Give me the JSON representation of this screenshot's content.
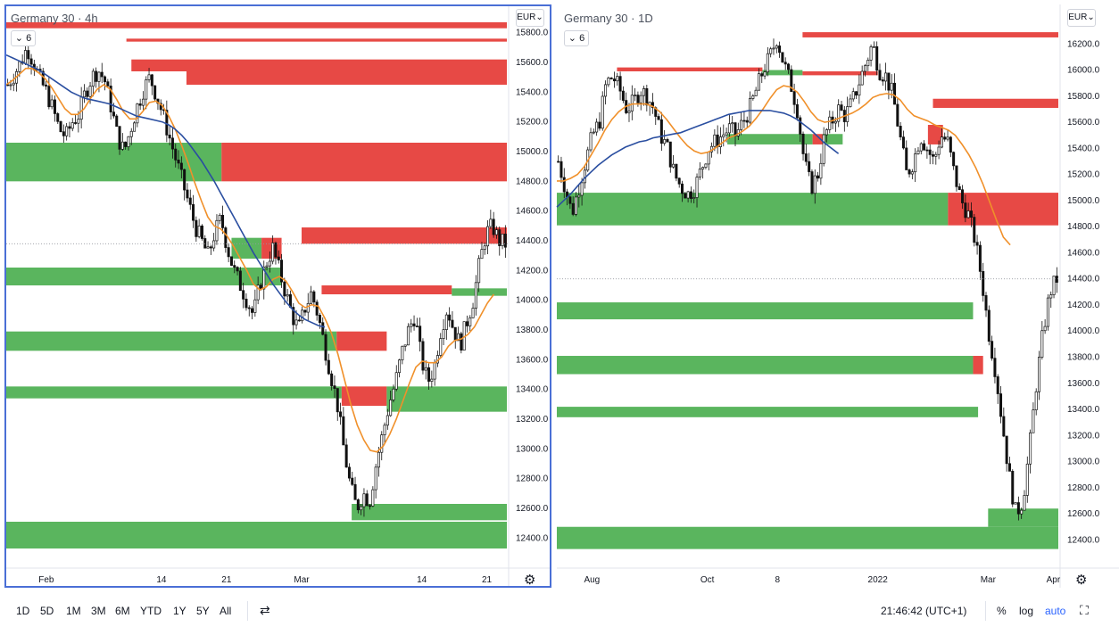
{
  "toolbar": {
    "timeframes": [
      "1D",
      "5D",
      "1M",
      "3M",
      "6M",
      "YTD",
      "1Y",
      "5Y",
      "All"
    ],
    "compare_icon": "calendar-range-icon",
    "clock": "21:46:42 (UTC+1)",
    "percent": "%",
    "log": "log",
    "auto": "auto",
    "fullscreen_icon": "fullscreen-icon",
    "accent_color": "#2962ff"
  },
  "colors": {
    "green_zone": "#4caf50",
    "red_zone": "#e53935",
    "ma_fast": "#f0902a",
    "ma_slow": "#2a4ea0",
    "frame": "#4a6fd6"
  },
  "chart_data": [
    {
      "type": "candlestick",
      "title": "Germany 30 · 4h",
      "interval_badge": "6",
      "currency": "EUR",
      "ylim": [
        12300,
        15900
      ],
      "y_ticks": [
        15800,
        15600,
        15400,
        15200,
        15000,
        14800,
        14600,
        14400,
        14200,
        14000,
        13800,
        13600,
        13400,
        13200,
        13000,
        12800,
        12600,
        12400
      ],
      "x_ticks": [
        {
          "label": "Feb",
          "t": 0.08
        },
        {
          "label": "14",
          "t": 0.31
        },
        {
          "label": "21",
          "t": 0.44
        },
        {
          "label": "Mar",
          "t": 0.59
        },
        {
          "label": "14",
          "t": 0.83
        },
        {
          "label": "21",
          "t": 0.96
        }
      ],
      "zones": [
        {
          "kind": "red",
          "from": 15870,
          "to": 15830,
          "x0": 0.0,
          "x1": 1.0
        },
        {
          "kind": "red",
          "from": 15760,
          "to": 15740,
          "x0": 0.24,
          "x1": 1.0
        },
        {
          "kind": "red",
          "from": 15620,
          "to": 15540,
          "x0": 0.25,
          "x1": 1.0
        },
        {
          "kind": "red",
          "from": 15540,
          "to": 15450,
          "x0": 0.36,
          "x1": 1.0
        },
        {
          "kind": "green",
          "from": 15060,
          "to": 14800,
          "x0": 0.0,
          "x1": 0.43
        },
        {
          "kind": "red",
          "from": 15060,
          "to": 14800,
          "x0": 0.43,
          "x1": 1.0
        },
        {
          "kind": "red",
          "from": 14490,
          "to": 14380,
          "x0": 0.59,
          "x1": 1.0
        },
        {
          "kind": "green",
          "from": 14420,
          "to": 14280,
          "x0": 0.45,
          "x1": 0.51
        },
        {
          "kind": "red",
          "from": 14420,
          "to": 14280,
          "x0": 0.51,
          "x1": 0.55
        },
        {
          "kind": "green",
          "from": 14220,
          "to": 14100,
          "x0": 0.0,
          "x1": 0.55
        },
        {
          "kind": "red",
          "from": 14100,
          "to": 14040,
          "x0": 0.63,
          "x1": 0.89
        },
        {
          "kind": "green",
          "from": 14080,
          "to": 14030,
          "x0": 0.89,
          "x1": 1.0
        },
        {
          "kind": "green",
          "from": 13790,
          "to": 13660,
          "x0": 0.0,
          "x1": 0.66
        },
        {
          "kind": "red",
          "from": 13790,
          "to": 13660,
          "x0": 0.66,
          "x1": 0.76
        },
        {
          "kind": "green",
          "from": 13420,
          "to": 13340,
          "x0": 0.0,
          "x1": 0.67
        },
        {
          "kind": "red",
          "from": 13420,
          "to": 13290,
          "x0": 0.67,
          "x1": 0.76
        },
        {
          "kind": "green",
          "from": 13420,
          "to": 13250,
          "x0": 0.76,
          "x1": 1.0
        },
        {
          "kind": "green",
          "from": 12630,
          "to": 12520,
          "x0": 0.69,
          "x1": 1.0
        },
        {
          "kind": "green",
          "from": 12510,
          "to": 12330,
          "x0": 0.0,
          "x1": 1.0
        }
      ],
      "price_path": [
        15450,
        15520,
        15600,
        15700,
        15600,
        15480,
        15400,
        15280,
        15150,
        15100,
        15200,
        15250,
        15400,
        15500,
        15550,
        15480,
        15300,
        15100,
        15000,
        15150,
        15300,
        15420,
        15500,
        15380,
        15250,
        15100,
        14950,
        14800,
        14650,
        14500,
        14400,
        14300,
        14450,
        14550,
        14350,
        14200,
        14100,
        14000,
        13900,
        14100,
        14250,
        14350,
        14200,
        14050,
        13900,
        13800,
        13950,
        14050,
        13900,
        13700,
        13500,
        13300,
        13000,
        12750,
        12600,
        12700,
        12650,
        12900,
        13100,
        13300,
        13450,
        13650,
        13800,
        13900,
        13600,
        13450,
        13550,
        13800,
        13950,
        13800,
        13700,
        13850,
        14000,
        14250,
        14450,
        14500,
        14400,
        14380
      ],
      "ma_fast": [
        15450,
        15480,
        15520,
        15560,
        15560,
        15530,
        15490,
        15430,
        15360,
        15290,
        15250,
        15250,
        15290,
        15360,
        15420,
        15450,
        15420,
        15350,
        15270,
        15220,
        15220,
        15270,
        15330,
        15340,
        15310,
        15240,
        15150,
        15040,
        14920,
        14790,
        14670,
        14560,
        14500,
        14480,
        14430,
        14360,
        14280,
        14200,
        14110,
        14070,
        14090,
        14140,
        14160,
        14130,
        14060,
        13980,
        13950,
        13970,
        13960,
        13880,
        13780,
        13640,
        13470,
        13300,
        13160,
        13060,
        12990,
        12980,
        13020,
        13100,
        13200,
        13320,
        13440,
        13550,
        13590,
        13580,
        13580,
        13620,
        13690,
        13730,
        13740,
        13770,
        13820,
        13900,
        13980,
        14040
      ],
      "ma_slow": [
        15650,
        15630,
        15610,
        15590,
        15570,
        15550,
        15520,
        15490,
        15460,
        15430,
        15400,
        15380,
        15360,
        15350,
        15340,
        15330,
        15320,
        15300,
        15280,
        15260,
        15240,
        15230,
        15220,
        15210,
        15200,
        15180,
        15150,
        15110,
        15060,
        15000,
        14940,
        14870,
        14800,
        14720,
        14640,
        14560,
        14480,
        14400,
        14320,
        14250,
        14180,
        14110,
        14050,
        13990,
        13940,
        13900,
        13870,
        13850,
        13830,
        13820
      ]
    },
    {
      "type": "candlestick",
      "title": "Germany 30 · 1D",
      "interval_badge": "6",
      "currency": "EUR",
      "ylim": [
        12300,
        16400
      ],
      "y_ticks": [
        16200,
        16000,
        15800,
        15600,
        15400,
        15200,
        15000,
        14800,
        14600,
        14400,
        14200,
        14000,
        13800,
        13600,
        13400,
        13200,
        13000,
        12800,
        12600,
        12400
      ],
      "x_ticks": [
        {
          "label": "Aug",
          "t": 0.07
        },
        {
          "label": "Oct",
          "t": 0.3
        },
        {
          "label": "8",
          "t": 0.44
        },
        {
          "label": "2022",
          "t": 0.64
        },
        {
          "label": "Mar",
          "t": 0.86
        },
        {
          "label": "Apr",
          "t": 0.99
        }
      ],
      "zones": [
        {
          "kind": "red",
          "from": 16290,
          "to": 16250,
          "x0": 0.49,
          "x1": 1.0
        },
        {
          "kind": "red",
          "from": 16020,
          "to": 15990,
          "x0": 0.12,
          "x1": 0.41
        },
        {
          "kind": "green",
          "from": 16000,
          "to": 15960,
          "x0": 0.41,
          "x1": 0.49
        },
        {
          "kind": "red",
          "from": 15990,
          "to": 15960,
          "x0": 0.49,
          "x1": 0.64
        },
        {
          "kind": "red",
          "from": 15780,
          "to": 15710,
          "x0": 0.75,
          "x1": 1.0
        },
        {
          "kind": "red",
          "from": 15580,
          "to": 15430,
          "x0": 0.74,
          "x1": 0.77
        },
        {
          "kind": "green",
          "from": 15510,
          "to": 15430,
          "x0": 0.34,
          "x1": 0.51
        },
        {
          "kind": "red",
          "from": 15510,
          "to": 15430,
          "x0": 0.51,
          "x1": 0.53
        },
        {
          "kind": "green",
          "from": 15510,
          "to": 15430,
          "x0": 0.53,
          "x1": 0.57
        },
        {
          "kind": "green",
          "from": 15060,
          "to": 14810,
          "x0": 0.0,
          "x1": 0.78
        },
        {
          "kind": "red",
          "from": 15060,
          "to": 14810,
          "x0": 0.78,
          "x1": 1.0
        },
        {
          "kind": "green",
          "from": 14220,
          "to": 14090,
          "x0": 0.0,
          "x1": 0.83
        },
        {
          "kind": "green",
          "from": 13810,
          "to": 13670,
          "x0": 0.0,
          "x1": 0.83
        },
        {
          "kind": "red",
          "from": 13810,
          "to": 13670,
          "x0": 0.83,
          "x1": 0.85
        },
        {
          "kind": "green",
          "from": 13420,
          "to": 13340,
          "x0": 0.0,
          "x1": 0.84
        },
        {
          "kind": "green",
          "from": 12640,
          "to": 12500,
          "x0": 0.86,
          "x1": 1.0
        },
        {
          "kind": "green",
          "from": 12500,
          "to": 12330,
          "x0": 0.0,
          "x1": 1.0
        }
      ],
      "price_path": [
        15300,
        15100,
        14900,
        15100,
        15300,
        15500,
        15600,
        15900,
        15950,
        15850,
        15700,
        15750,
        15850,
        15800,
        15700,
        15500,
        15400,
        15200,
        15100,
        15050,
        15100,
        15250,
        15400,
        15450,
        15500,
        15550,
        15500,
        15600,
        15700,
        15850,
        16000,
        16100,
        16250,
        16050,
        15900,
        15700,
        15300,
        15100,
        15200,
        15500,
        15600,
        15700,
        15650,
        15750,
        15900,
        16050,
        16200,
        16000,
        15950,
        15800,
        15500,
        15200,
        15300,
        15500,
        15400,
        15300,
        15500,
        15450,
        15200,
        15000,
        14900,
        14700,
        14400,
        14000,
        13700,
        13300,
        12900,
        12600,
        12700,
        13100,
        13600,
        14000,
        14300,
        14400
      ],
      "ma_fast": [
        15150,
        15150,
        15170,
        15200,
        15260,
        15350,
        15440,
        15540,
        15620,
        15680,
        15720,
        15740,
        15740,
        15740,
        15720,
        15680,
        15620,
        15550,
        15480,
        15420,
        15380,
        15360,
        15370,
        15400,
        15440,
        15480,
        15500,
        15530,
        15570,
        15630,
        15700,
        15780,
        15850,
        15880,
        15870,
        15830,
        15760,
        15680,
        15620,
        15600,
        15610,
        15630,
        15650,
        15670,
        15700,
        15740,
        15790,
        15810,
        15820,
        15810,
        15770,
        15700,
        15650,
        15630,
        15610,
        15580,
        15560,
        15540,
        15500,
        15430,
        15350,
        15250,
        15130,
        14990,
        14850,
        14720,
        14660
      ],
      "ma_slow": [
        14950,
        15000,
        15050,
        15110,
        15170,
        15220,
        15270,
        15310,
        15350,
        15380,
        15410,
        15430,
        15450,
        15460,
        15480,
        15490,
        15500,
        15510,
        15520,
        15540,
        15560,
        15580,
        15600,
        15620,
        15640,
        15660,
        15670,
        15680,
        15690,
        15690,
        15690,
        15690,
        15680,
        15670,
        15650,
        15620,
        15580,
        15540,
        15490,
        15440,
        15400,
        15360
      ]
    }
  ]
}
